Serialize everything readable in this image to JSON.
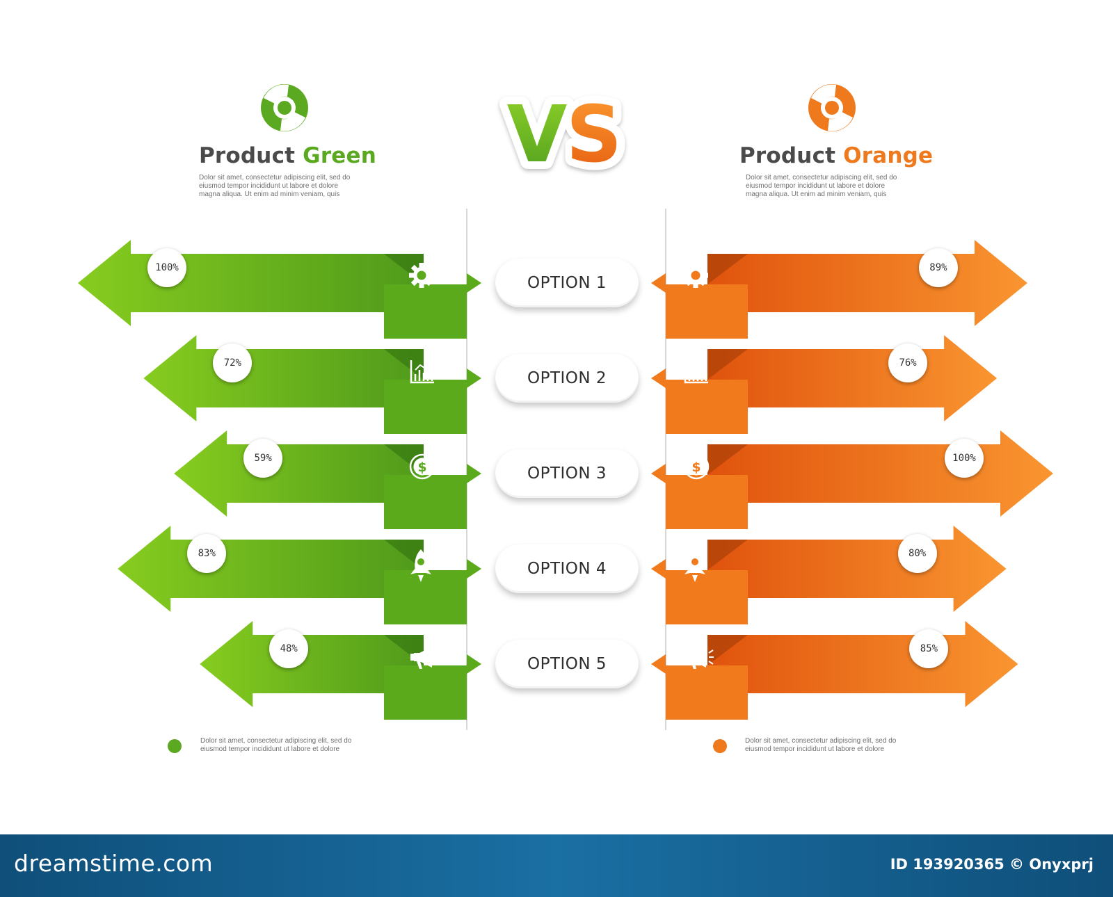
{
  "header": {
    "vs_letters": [
      "V",
      "S"
    ]
  },
  "products": {
    "green": {
      "title_word": "Product",
      "title_color_word": "Green",
      "description": [
        "Dolor sit amet, consectetur adipiscing elit, sed do",
        "eiusmod tempor incididunt ut labore et dolore",
        "magna aliqua. Ut enim ad minim veniam, quis"
      ],
      "footnote": [
        "Dolor sit amet, consectetur adipiscing elit, sed do",
        "eiusmod tempor incididunt ut labore et dolore"
      ],
      "color": "#5aa921",
      "logo_icon": "circular-swirl-logo-icon"
    },
    "orange": {
      "title_word": "Product",
      "title_color_word": "Orange",
      "description": [
        "Dolor sit amet, consectetur adipiscing elit, sed do",
        "eiusmod tempor incididunt ut labore et dolore",
        "magna aliqua. Ut enim ad minim veniam, quis"
      ],
      "footnote": [
        "Dolor sit amet, consectetur adipiscing elit, sed do",
        "eiusmod tempor incididunt ut labore et dolore"
      ],
      "color": "#ee7a1d",
      "logo_icon": "circular-swirl-logo-icon"
    }
  },
  "options": [
    {
      "label": "OPTION 1",
      "icon": "gear-icon",
      "green_value": "100%",
      "orange_value": "89%",
      "green_pct": 100,
      "orange_pct": 89
    },
    {
      "label": "OPTION 2",
      "icon": "bar-chart-icon",
      "green_value": "72%",
      "orange_value": "76%",
      "green_pct": 72,
      "orange_pct": 76
    },
    {
      "label": "OPTION 3",
      "icon": "dollar-icon",
      "green_value": "59%",
      "orange_value": "100%",
      "green_pct": 59,
      "orange_pct": 100
    },
    {
      "label": "OPTION 4",
      "icon": "rocket-icon",
      "green_value": "83%",
      "orange_value": "80%",
      "green_pct": 83,
      "orange_pct": 80
    },
    {
      "label": "OPTION 5",
      "icon": "megaphone-icon",
      "green_value": "48%",
      "orange_value": "85%",
      "green_pct": 48,
      "orange_pct": 85
    }
  ],
  "colors": {
    "green_light": "#82c91e",
    "green_dark": "#4e9a1c",
    "orange_light": "#f7922d",
    "orange_dark": "#e2580f",
    "footer_bg": "#1565a0"
  },
  "footer": {
    "brand": "dreamstime.com",
    "credit": "ID 193920365 © Onyxprj"
  }
}
